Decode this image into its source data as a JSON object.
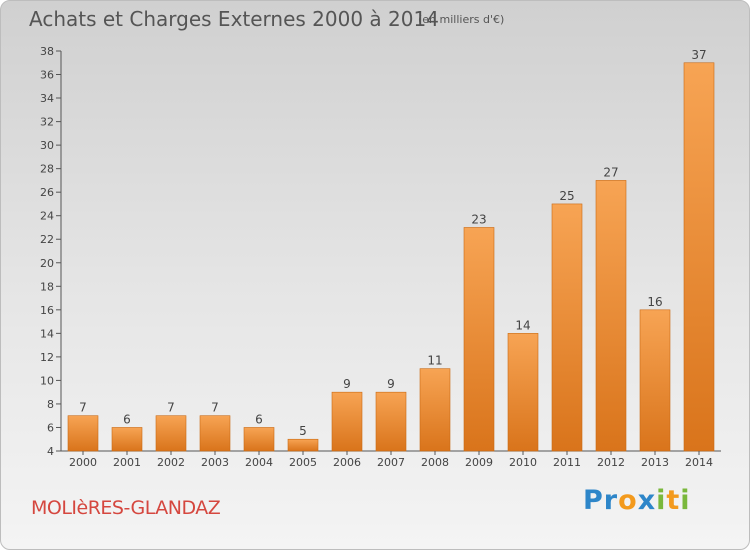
{
  "title": "Achats et Charges Externes 2000 à 2014",
  "subtitle": "(en milliers d'€)",
  "commune": "MOLIèRES-GLANDAZ",
  "brand": {
    "text": "Proxiti",
    "letters": [
      {
        "ch": "P",
        "color": "#2e86c9"
      },
      {
        "ch": "r",
        "color": "#2e86c9"
      },
      {
        "ch": "o",
        "color": "#f39a1d"
      },
      {
        "ch": "x",
        "color": "#2e86c9"
      },
      {
        "ch": "i",
        "color": "#7ab83c"
      },
      {
        "ch": "t",
        "color": "#f39a1d"
      },
      {
        "ch": "i",
        "color": "#7ab83c"
      }
    ]
  },
  "chart_data": {
    "type": "bar",
    "title": "Achats et Charges Externes 2000 à 2014",
    "subtitle": "(en milliers d'€)",
    "categories": [
      "2000",
      "2001",
      "2002",
      "2003",
      "2004",
      "2005",
      "2006",
      "2007",
      "2008",
      "2009",
      "2010",
      "2011",
      "2012",
      "2013",
      "2014"
    ],
    "values": [
      7,
      6,
      7,
      7,
      6,
      5,
      9,
      9,
      11,
      23,
      14,
      25,
      27,
      16,
      37
    ],
    "ylim": [
      4,
      38
    ],
    "yticks": [
      4,
      6,
      8,
      10,
      12,
      14,
      16,
      18,
      20,
      22,
      24,
      26,
      28,
      30,
      32,
      34,
      36,
      38
    ],
    "grid": false,
    "bar_color": "#ef8a2c"
  }
}
